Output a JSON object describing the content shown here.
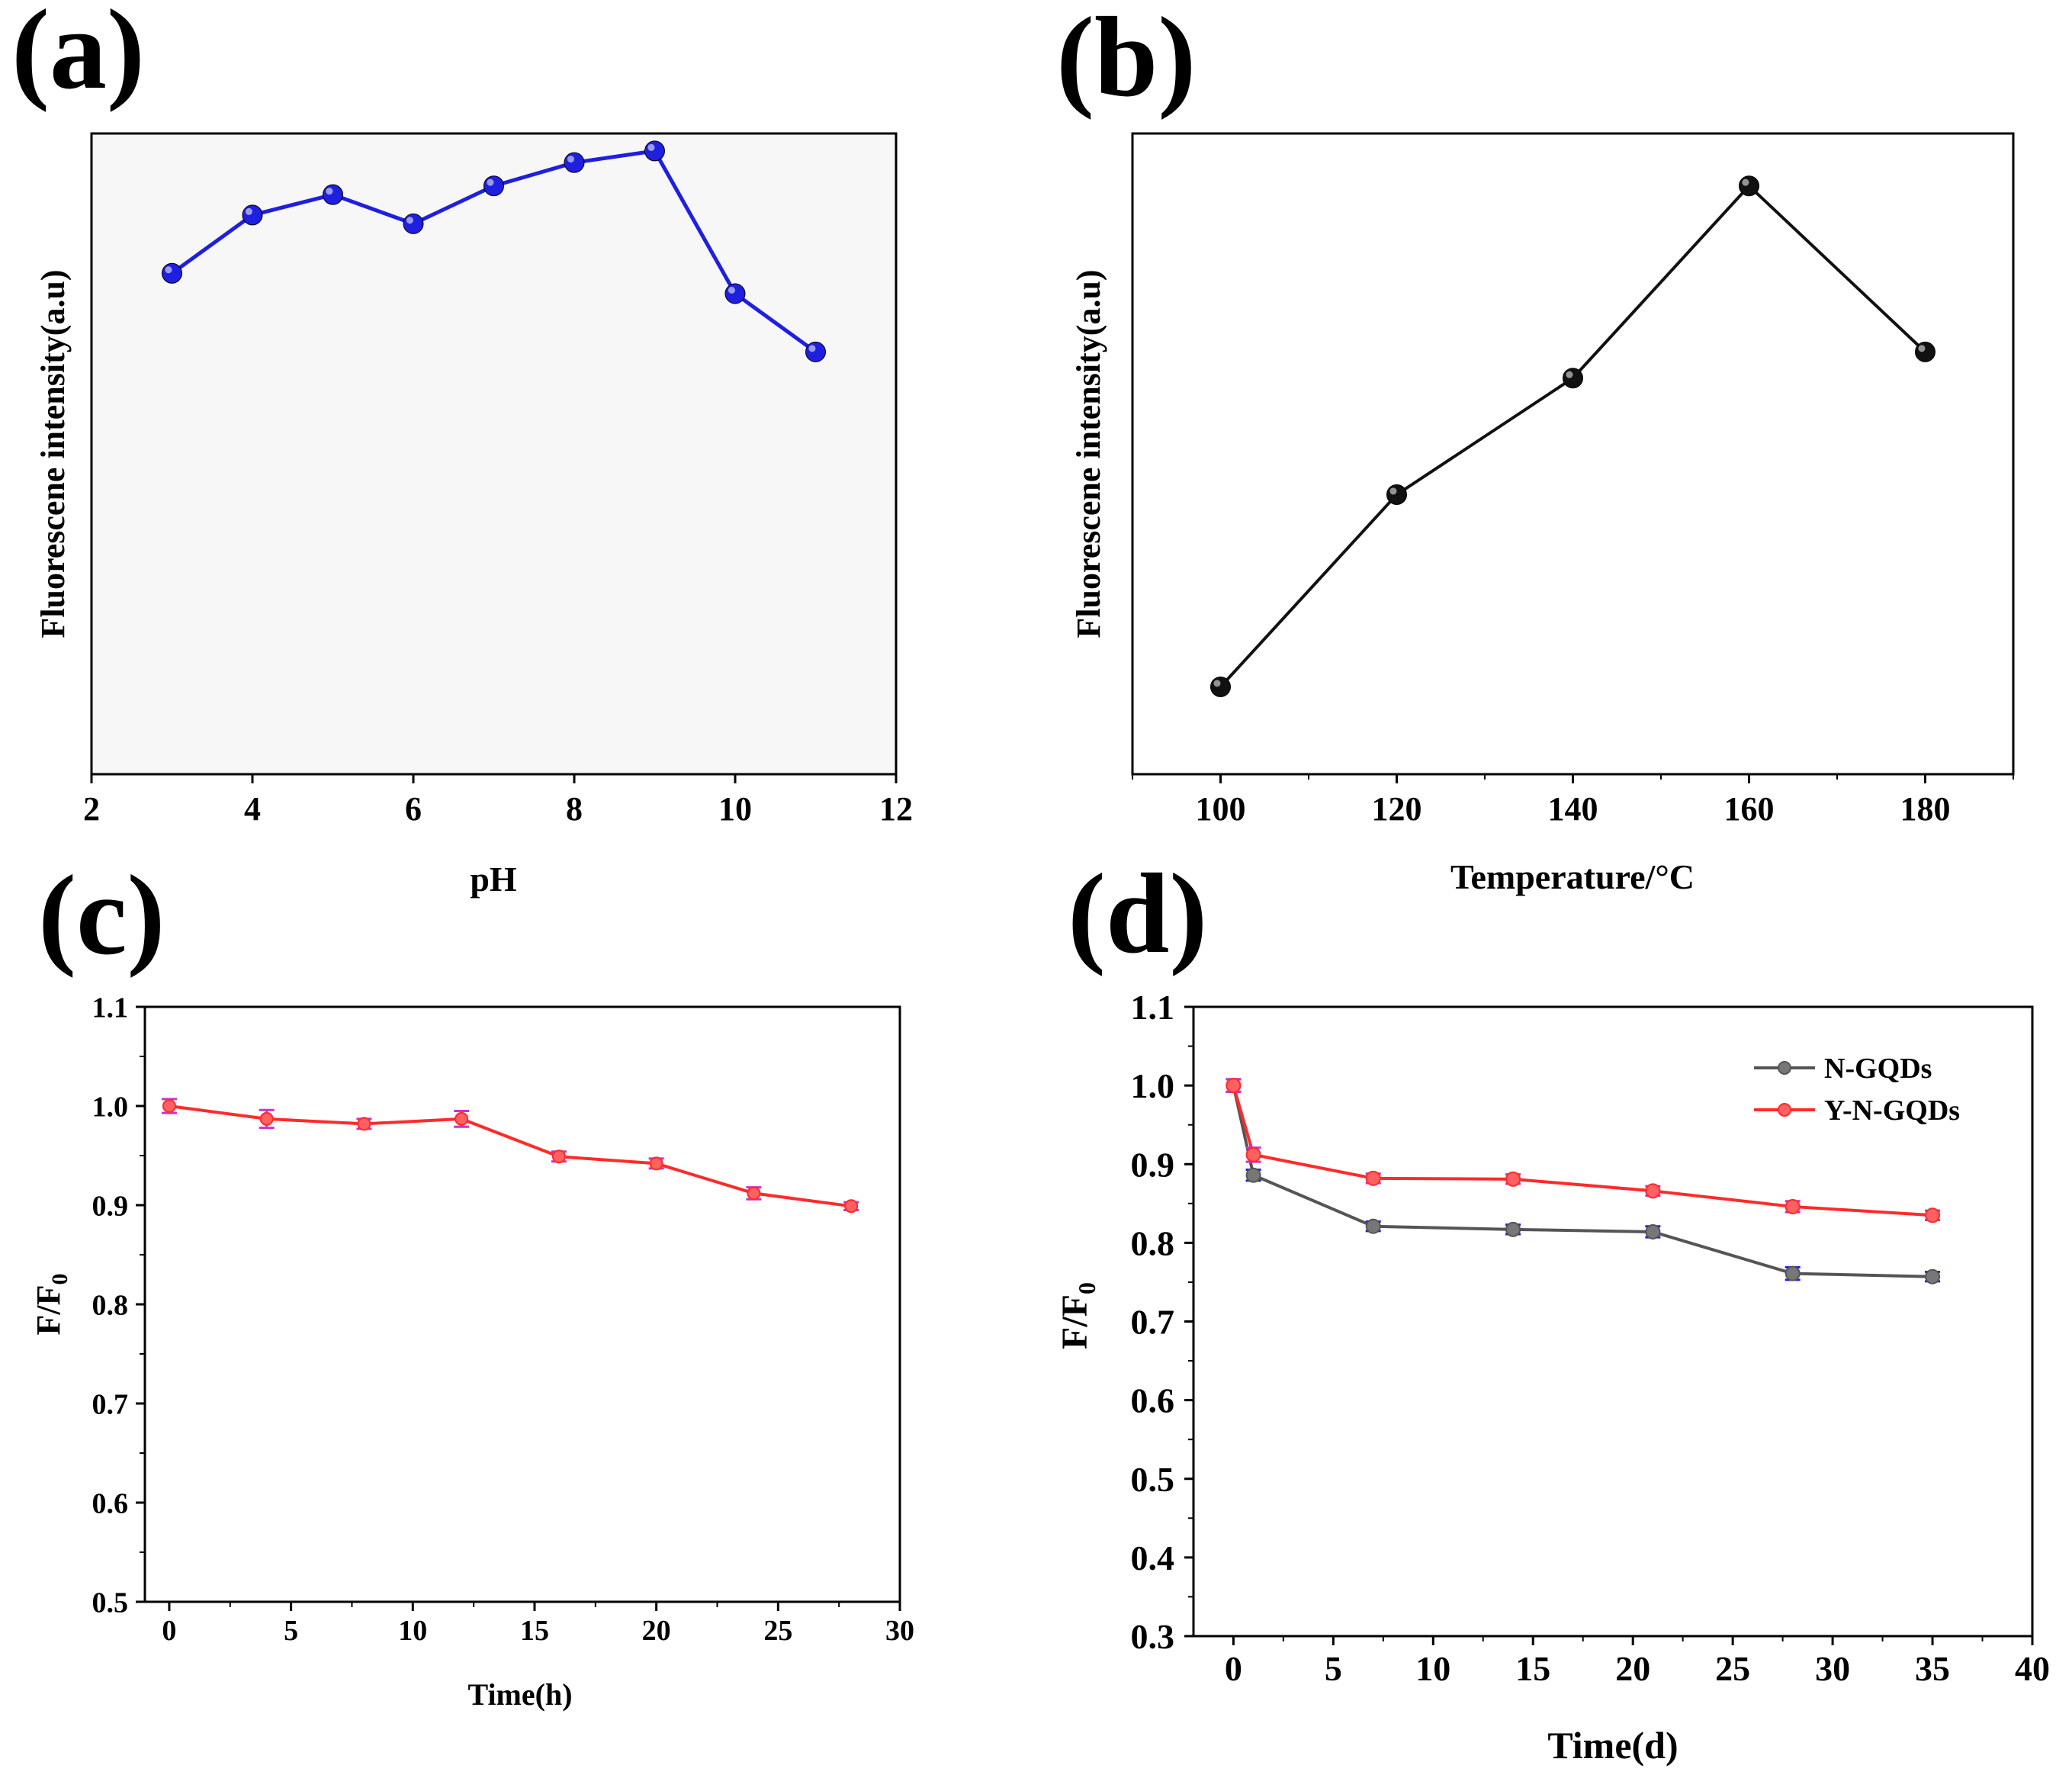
{
  "chart_data": [
    {
      "panel": "(a)",
      "type": "line",
      "xlabel": "pH",
      "ylabel": "Fluorescene intensity(a.u)",
      "xlim": [
        2,
        12
      ],
      "ylim": [
        0,
        1.1
      ],
      "xticks": [
        "2",
        "4",
        "6",
        "8",
        "10",
        "12"
      ],
      "yticks": [],
      "grid": false,
      "series": [
        {
          "name": "pH",
          "color": "#1f1fe0",
          "x": [
            3,
            4,
            5,
            6,
            7,
            8,
            9,
            10,
            11
          ],
          "y": [
            0.86,
            0.96,
            0.995,
            0.945,
            1.01,
            1.05,
            1.07,
            0.825,
            0.725
          ]
        }
      ]
    },
    {
      "panel": "(b)",
      "type": "line",
      "xlabel": "Temperature/°C",
      "ylabel": "Fluorescene intensity(a.u)",
      "xlim": [
        90,
        190
      ],
      "ylim": [
        0,
        1.1
      ],
      "xticks": [
        "100",
        "120",
        "140",
        "160",
        "180"
      ],
      "yticks": [],
      "grid": false,
      "series": [
        {
          "name": "Temperature",
          "color": "#111111",
          "x": [
            100,
            120,
            140,
            160,
            180
          ],
          "y": [
            0.15,
            0.48,
            0.68,
            1.01,
            0.725
          ]
        }
      ]
    },
    {
      "panel": "(c)",
      "type": "line",
      "xlabel": "Time(h)",
      "ylabel": "F/F",
      "ylabel_sub": "0",
      "xlim": [
        -1,
        30
      ],
      "ylim": [
        0.5,
        1.1
      ],
      "xticks": [
        "0",
        "5",
        "10",
        "15",
        "20",
        "25",
        "30"
      ],
      "yticks": [
        "0.5",
        "0.6",
        "0.7",
        "0.8",
        "0.9",
        "1.0",
        "1.1"
      ],
      "grid": false,
      "series": [
        {
          "name": "F/F0",
          "color": "#ff2a2a",
          "marker_color": "#ff6060",
          "errbar_color": "#cc33cc",
          "x": [
            0,
            4,
            8,
            12,
            16,
            20,
            24,
            28
          ],
          "y": [
            1.0,
            0.987,
            0.982,
            0.987,
            0.949,
            0.942,
            0.912,
            0.899
          ],
          "err": [
            0.007,
            0.009,
            0.005,
            0.008,
            0.005,
            0.005,
            0.006,
            0.004
          ]
        }
      ]
    },
    {
      "panel": "(d)",
      "type": "line",
      "xlabel": "Time(d)",
      "ylabel": "F/F",
      "ylabel_sub": "0",
      "xlim": [
        -2,
        40
      ],
      "ylim": [
        0.3,
        1.1
      ],
      "xticks": [
        "0",
        "5",
        "10",
        "15",
        "20",
        "25",
        "30",
        "35",
        "40"
      ],
      "yticks": [
        "0.3",
        "0.4",
        "0.5",
        "0.6",
        "0.7",
        "0.8",
        "0.9",
        "1.0",
        "1.1"
      ],
      "legend": "top-right",
      "grid": false,
      "series": [
        {
          "name": "N-GQDs",
          "color": "#555555",
          "marker_color": "#777777",
          "errbar_color": "#1f1fe0",
          "x": [
            0,
            1,
            7,
            14,
            21,
            28,
            35
          ],
          "y": [
            1.0,
            0.886,
            0.821,
            0.817,
            0.814,
            0.761,
            0.757
          ],
          "err": [
            0.008,
            0.007,
            0.006,
            0.006,
            0.007,
            0.008,
            0.006
          ]
        },
        {
          "name": "Y-N-GQDs",
          "color": "#ff2a2a",
          "marker_color": "#ff6060",
          "errbar_color": "#cc33cc",
          "x": [
            0,
            1,
            7,
            14,
            21,
            28,
            35
          ],
          "y": [
            1.0,
            0.912,
            0.882,
            0.881,
            0.866,
            0.846,
            0.835
          ],
          "err": [
            0.008,
            0.009,
            0.006,
            0.006,
            0.006,
            0.007,
            0.006
          ]
        }
      ]
    }
  ]
}
